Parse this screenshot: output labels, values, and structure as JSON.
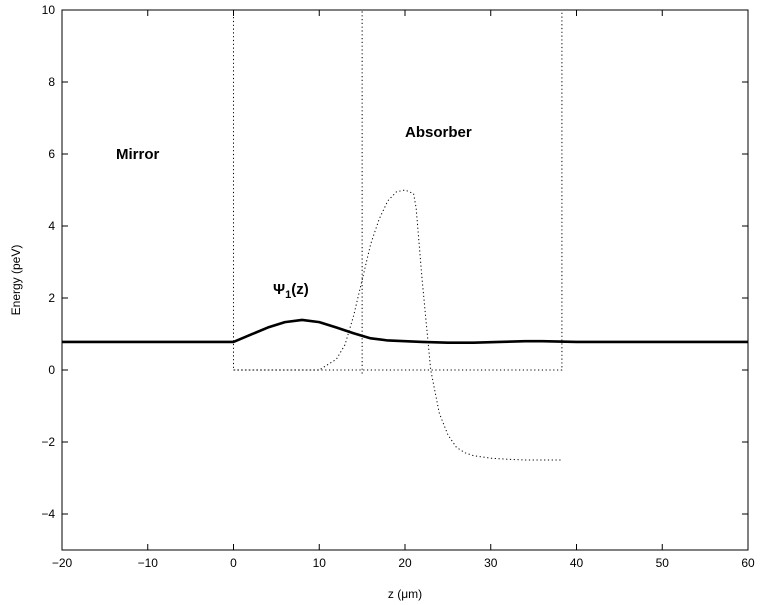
{
  "chart_data": {
    "type": "line",
    "title": "",
    "xlabel": "z (μm)",
    "ylabel": "Energy (peV)",
    "xlim": [
      -20,
      60
    ],
    "ylim": [
      -5,
      10
    ],
    "xticks": [
      -20,
      -10,
      0,
      10,
      20,
      30,
      40,
      50,
      60
    ],
    "yticks": [
      -4,
      -2,
      0,
      2,
      4,
      6,
      8,
      10
    ],
    "xtick_labels": [
      "−20",
      "−10",
      "0",
      "10",
      "20",
      "30",
      "40",
      "50",
      "60"
    ],
    "ytick_labels": [
      "−4",
      "−2",
      "0",
      "2",
      "4",
      "6",
      "8",
      "10"
    ],
    "grid": false,
    "annotations": {
      "mirror": "Mirror",
      "absorber": "Absorber",
      "psi_symbol": "Ψ",
      "psi_subscript": "1",
      "psi_arg": "(z)"
    },
    "series": [
      {
        "style": "dotted",
        "role": "mirror potential",
        "x": [
          -20,
          0,
          0,
          38.3,
          38.3,
          60
        ],
        "y": [
          10,
          10,
          0,
          0,
          10,
          10
        ]
      },
      {
        "style": "dotted",
        "role": "absorber boundary",
        "x": [
          15,
          15
        ],
        "y": [
          -0.1,
          10
        ]
      },
      {
        "style": "dotted",
        "role": "absorber potential",
        "x": [
          0,
          10,
          12,
          13,
          14,
          15,
          16,
          17,
          18,
          19,
          20,
          21,
          21.3,
          22,
          23,
          24,
          25,
          26,
          27,
          28,
          30,
          32,
          34,
          36,
          38.3
        ],
        "y": [
          0,
          0,
          0.3,
          0.7,
          1.5,
          2.5,
          3.5,
          4.2,
          4.7,
          4.95,
          5.0,
          4.9,
          4.5,
          2.5,
          0.0,
          -1.2,
          -1.8,
          -2.15,
          -2.3,
          -2.38,
          -2.45,
          -2.48,
          -2.5,
          -2.5,
          -2.5
        ]
      },
      {
        "style": "solid",
        "role": "wavefunction",
        "x": [
          -20,
          0,
          2,
          4,
          6,
          8,
          10,
          12,
          14,
          16,
          18,
          20,
          22,
          25,
          28,
          31,
          34,
          36,
          38,
          40,
          45,
          50,
          55,
          60
        ],
        "y": [
          0.78,
          0.78,
          0.98,
          1.18,
          1.33,
          1.39,
          1.33,
          1.18,
          1.02,
          0.88,
          0.82,
          0.8,
          0.78,
          0.76,
          0.76,
          0.78,
          0.8,
          0.8,
          0.79,
          0.78,
          0.78,
          0.78,
          0.78,
          0.78
        ]
      }
    ]
  }
}
